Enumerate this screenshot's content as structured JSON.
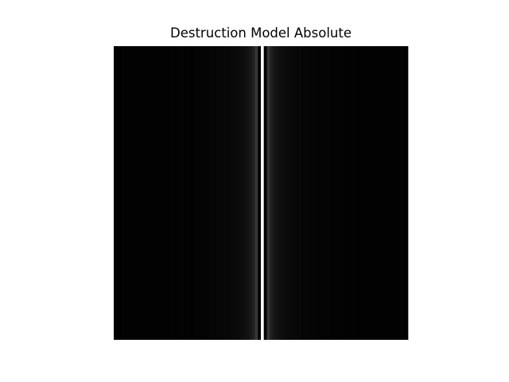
{
  "chart_data": {
    "type": "heatmap",
    "title": "Destruction Model Absolute",
    "xlabel": "",
    "ylabel": "",
    "colormap": "gray",
    "axes_visible": false,
    "grid": false,
    "columns": 100,
    "rows": 1,
    "values_note_removed": true,
    "column_profile": {
      "center_column": 50,
      "function": "sinc_magnitude",
      "peak_value": 1.0,
      "first_null_offset": 1,
      "sidelobe_values": [
        1.0,
        0.0,
        0.21,
        0.13,
        0.09,
        0.07,
        0.06,
        0.05,
        0.045,
        0.04,
        0.035,
        0.03,
        0.028,
        0.026,
        0.024,
        0.022,
        0.02,
        0.019,
        0.018,
        0.017,
        0.016,
        0.015,
        0.014,
        0.013,
        0.013,
        0.012,
        0.012,
        0.011,
        0.011,
        0.01,
        0.01,
        0.01,
        0.009,
        0.009,
        0.009,
        0.008,
        0.008,
        0.008,
        0.008,
        0.007,
        0.007,
        0.007,
        0.007,
        0.006,
        0.006,
        0.006,
        0.006,
        0.006,
        0.005,
        0.005,
        0.005
      ]
    },
    "vmin": 0.0,
    "vmax": 1.0
  }
}
